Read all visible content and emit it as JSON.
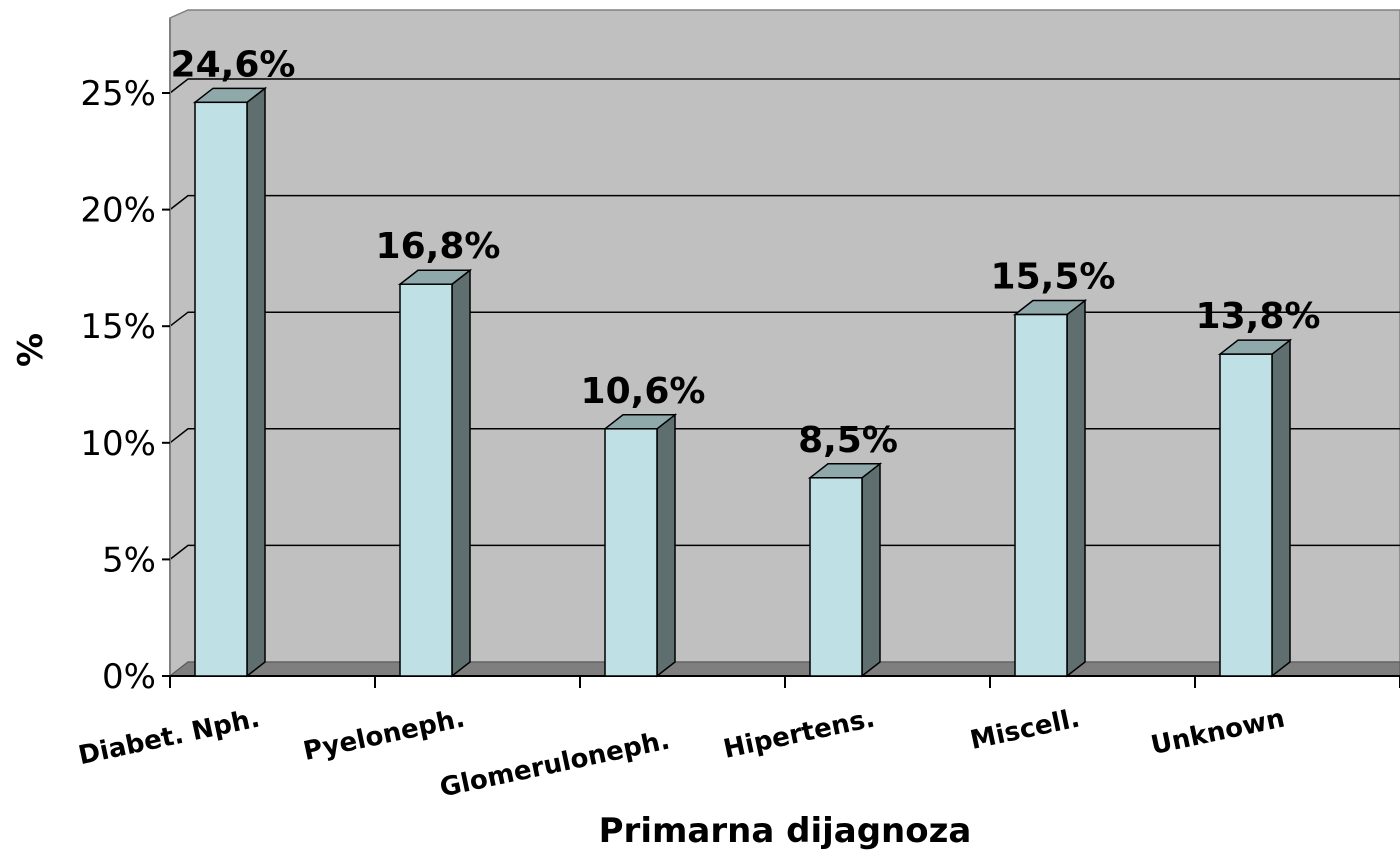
{
  "chart_data": {
    "type": "bar",
    "categories": [
      "Diabet. Nph.",
      "Pyeloneph.",
      "Glomeruloneph.",
      "Hipertens.",
      "Miscell.",
      "Unknown"
    ],
    "values": [
      24.6,
      16.8,
      10.6,
      8.5,
      15.5,
      13.8
    ],
    "data_labels": [
      "24,6%",
      "16,8%",
      "10,6%",
      "8,5%",
      "15,5%",
      "13,8%"
    ],
    "y_ticks": [
      "0%",
      "5%",
      "10%",
      "15%",
      "20%",
      "25%"
    ],
    "ylim": [
      0,
      25
    ],
    "xlabel": "Primarna dijagnoza",
    "ylabel": "%",
    "grid": true,
    "legend": "none",
    "colors": {
      "bar_front": "#bfe0e4",
      "bar_side": "#5f6e6e",
      "bar_top": "#8fa9ab",
      "wall": "#c0c0c0",
      "floor": "#7f7f7f"
    }
  }
}
